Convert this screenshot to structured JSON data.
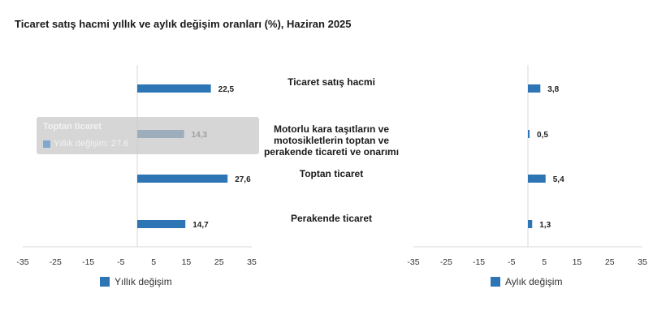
{
  "title": "Ticaret satış hacmi yıllık ve aylık değişim oranları (%), Haziran 2025",
  "colors": {
    "bar": "#2e75b6",
    "bar_hover": "#215e94",
    "axis": "#d9d9d9"
  },
  "chart_data": [
    {
      "type": "bar",
      "orientation": "horizontal",
      "categories": [
        "Ticaret satış hacmi",
        "Motorlu kara taşıtların ve motosikletlerin toptan ve perakende ticareti ve onarımı",
        "Toptan ticaret",
        "Perakende ticaret"
      ],
      "series": [
        {
          "name": "Yıllık değişim",
          "values": [
            22.5,
            14.3,
            27.6,
            14.7
          ]
        }
      ],
      "value_labels": [
        "22,5",
        "14,3",
        "27,6",
        "14,7"
      ],
      "xlim": [
        -35,
        35
      ],
      "ticks": [
        -35,
        -25,
        -15,
        -5,
        5,
        15,
        25,
        35
      ],
      "legend": "bottom",
      "highlighted_index": 1
    },
    {
      "type": "bar",
      "orientation": "horizontal",
      "categories": [
        "Ticaret satış hacmi",
        "Motorlu kara taşıtların ve motosikletlerin toptan ve perakende ticareti ve onarımı",
        "Toptan ticaret",
        "Perakende ticaret"
      ],
      "series": [
        {
          "name": "Aylık değişim",
          "values": [
            3.8,
            0.5,
            5.4,
            1.3
          ]
        }
      ],
      "value_labels": [
        "3,8",
        "0,5",
        "5,4",
        "1,3"
      ],
      "xlim": [
        -35,
        35
      ],
      "ticks": [
        -35,
        -25,
        -15,
        -5,
        5,
        15,
        25,
        35
      ],
      "legend": "bottom"
    }
  ],
  "category_lines": [
    [
      "Ticaret satış hacmi"
    ],
    [
      "Motorlu kara taşıtların ve",
      "motosikletlerin toptan ve",
      "perakende ticareti ve onarımı"
    ],
    [
      "Toptan ticaret"
    ],
    [
      "Perakende ticaret"
    ]
  ],
  "tooltip": {
    "title": "Toptan ticaret",
    "series": "Yıllık değişim",
    "value": "27.6"
  }
}
